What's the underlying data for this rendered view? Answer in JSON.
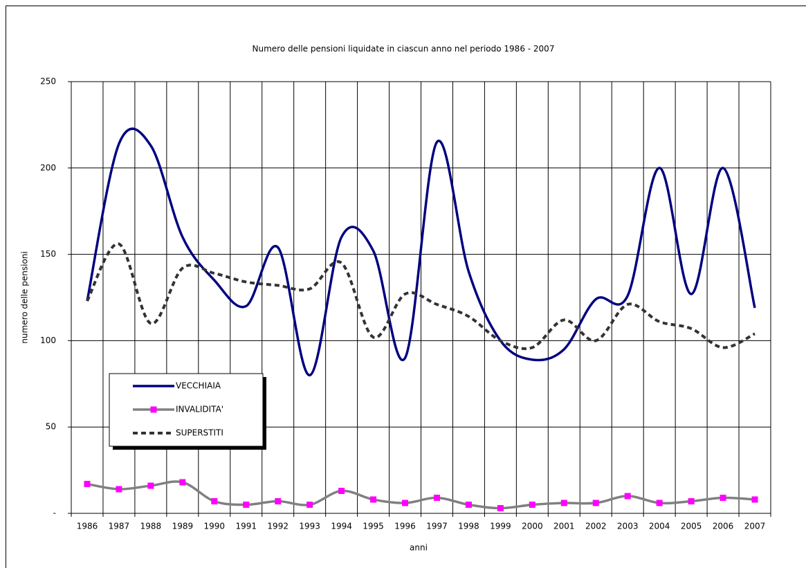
{
  "chart_data": {
    "type": "line",
    "title": "Numero delle pensioni liquidate in ciascun anno nel periodo 1986 - 2007",
    "x_label": "anni",
    "y_label": "numero delle pensioni",
    "categories": [
      "1986",
      "1987",
      "1988",
      "1989",
      "1990",
      "1991",
      "1992",
      "1993",
      "1994",
      "1995",
      "1996",
      "1997",
      "1998",
      "1999",
      "2000",
      "2001",
      "2002",
      "2003",
      "2004",
      "2005",
      "2006",
      "2007"
    ],
    "series": [
      {
        "name": "VECCHIAIA",
        "color": "#000080",
        "dash": false,
        "marker": null,
        "values": [
          123,
          214,
          213,
          160,
          135,
          120,
          154,
          80,
          160,
          152,
          90,
          215,
          140,
          100,
          89,
          95,
          124,
          126,
          200,
          127,
          200,
          119
        ]
      },
      {
        "name": "INVALIDITA'",
        "color": "#808080",
        "dash": false,
        "marker": "#ff00ff",
        "values": [
          17,
          14,
          16,
          18,
          7,
          5,
          7,
          5,
          13,
          8,
          6,
          9,
          5,
          3,
          5,
          6,
          6,
          10,
          6,
          7,
          9,
          8
        ]
      },
      {
        "name": "SUPERSTITI",
        "color": "#333333",
        "dash": true,
        "marker": null,
        "values": [
          123,
          156,
          110,
          142,
          139,
          134,
          132,
          130,
          145,
          102,
          127,
          121,
          114,
          100,
          96,
          112,
          100,
          121,
          111,
          107,
          96,
          104
        ]
      }
    ],
    "ylim": [
      0,
      250
    ],
    "yticks": [
      {
        "value": 0,
        "label": "-"
      },
      50,
      100,
      150,
      200,
      250
    ],
    "grid": true,
    "smooth": true
  }
}
